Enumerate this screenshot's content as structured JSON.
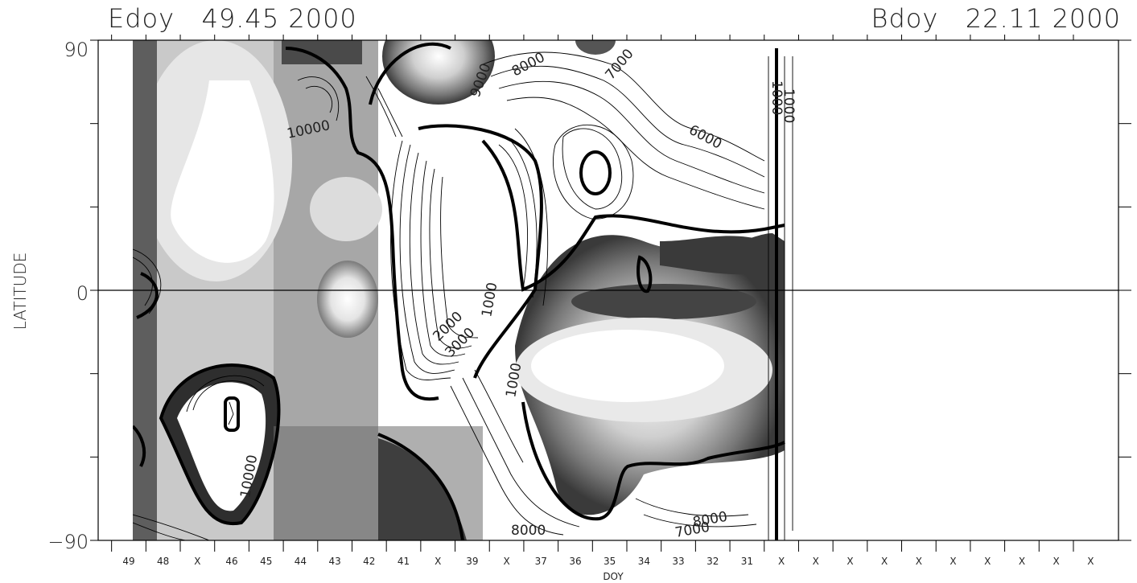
{
  "header": {
    "left_title": "Edoy   49.45 2000",
    "right_title": "Bdoy   22.11 2000"
  },
  "colors": {
    "background": "#ffffff",
    "dark_fill": "#3a3a3a",
    "mid_fill": "#8a8a8a",
    "light_fill": "#d9d9d9",
    "contour_line": "#111111"
  },
  "chart_data": {
    "type": "heatmap",
    "title": "",
    "xlabel": "DOY",
    "ylabel": "LATITUDE",
    "ylim": [
      -90,
      90
    ],
    "y_ticks": [
      "90",
      "0",
      "−90"
    ],
    "x_ticks": [
      "49",
      "48",
      "X",
      "46",
      "45",
      "44",
      "43",
      "42",
      "41",
      "X",
      "39",
      "X",
      "37",
      "36",
      "35",
      "34",
      "33",
      "32",
      "31",
      "X",
      "X",
      "X",
      "X",
      "X",
      "X",
      "X",
      "X",
      "X",
      "X"
    ],
    "contour_labels": [
      "10000",
      "8000",
      "7000",
      "6000",
      "9000",
      "1000",
      "2000",
      "3000",
      "1000",
      "8000",
      "7000",
      "8000",
      "1000",
      "1000",
      "10000"
    ],
    "grid": false,
    "equator_line": true
  }
}
